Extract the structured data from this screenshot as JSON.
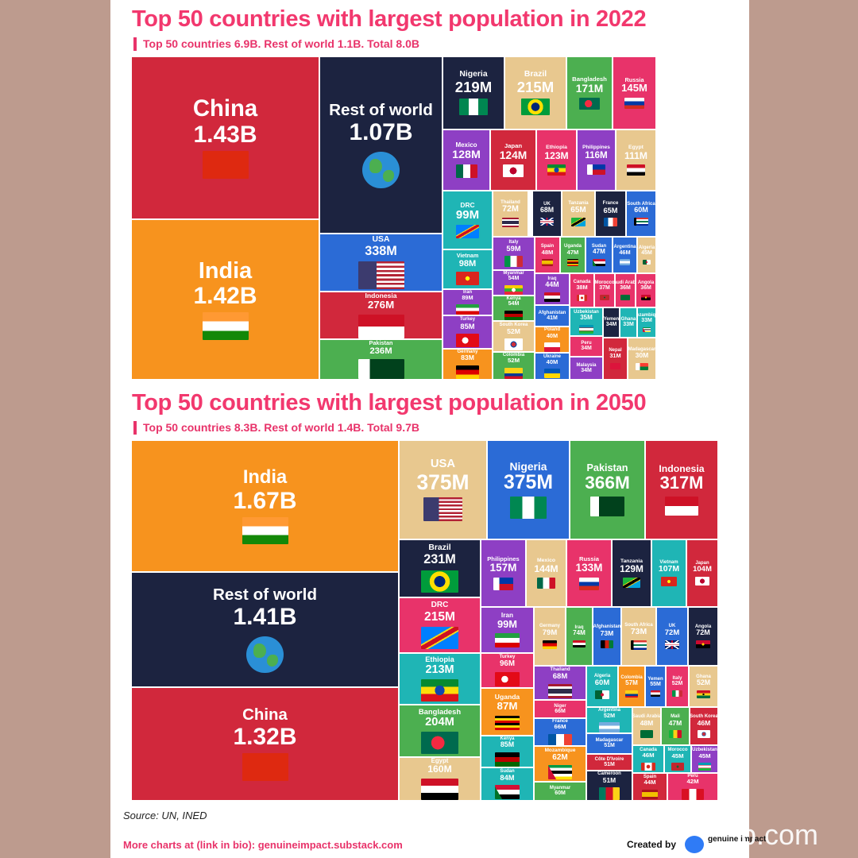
{
  "chart_data": [
    {
      "type": "treemap",
      "title": "Top 50 countries with largest population in 2022",
      "subtitle": "Top 50 countries 6.9B. Rest of world 1.1B. Total 8.0B",
      "unit": "people",
      "items": [
        {
          "name": "China",
          "label": "1.43B",
          "value": 1430000000,
          "color": "#d1283c",
          "flag": "china"
        },
        {
          "name": "India",
          "label": "1.42B",
          "value": 1420000000,
          "color": "#f7931e",
          "flag": "india"
        },
        {
          "name": "Rest of world",
          "label": "1.07B",
          "value": 1070000000,
          "color": "#1c2340",
          "flag": "globe"
        },
        {
          "name": "USA",
          "label": "338M",
          "value": 338000000,
          "color": "#2b6bd6",
          "flag": "usa"
        },
        {
          "name": "Indonesia",
          "label": "276M",
          "value": 276000000,
          "color": "#d1283c",
          "flag": "indonesia"
        },
        {
          "name": "Pakistan",
          "label": "236M",
          "value": 236000000,
          "color": "#4caf50",
          "flag": "pakistan"
        },
        {
          "name": "Nigeria",
          "label": "219M",
          "value": 219000000,
          "color": "#1c2340",
          "flag": "nigeria"
        },
        {
          "name": "Brazil",
          "label": "215M",
          "value": 215000000,
          "color": "#e8c88f",
          "flag": "brazil"
        },
        {
          "name": "Bangladesh",
          "label": "171M",
          "value": 171000000,
          "color": "#4caf50",
          "flag": "bangladesh"
        },
        {
          "name": "Russia",
          "label": "145M",
          "value": 145000000,
          "color": "#e8336a",
          "flag": "russia"
        },
        {
          "name": "Mexico",
          "label": "128M",
          "value": 128000000,
          "color": "#8e3fc4",
          "flag": "mexico"
        },
        {
          "name": "Japan",
          "label": "124M",
          "value": 124000000,
          "color": "#d1283c",
          "flag": "japan"
        },
        {
          "name": "Ethiopia",
          "label": "123M",
          "value": 123000000,
          "color": "#e8336a",
          "flag": "ethiopia"
        },
        {
          "name": "Philippines",
          "label": "116M",
          "value": 116000000,
          "color": "#8e3fc4",
          "flag": "philippines"
        },
        {
          "name": "Egypt",
          "label": "111M",
          "value": 111000000,
          "color": "#e8c88f",
          "flag": "egypt"
        },
        {
          "name": "DRC",
          "label": "99M",
          "value": 99000000,
          "color": "#1fb5b5",
          "flag": "drc"
        },
        {
          "name": "Vietnam",
          "label": "98M",
          "value": 98000000,
          "color": "#1fb5b5",
          "flag": "vietnam"
        },
        {
          "name": "Iran",
          "label": "89M",
          "value": 89000000,
          "color": "#8e3fc4",
          "flag": "iran"
        },
        {
          "name": "Turkey",
          "label": "85M",
          "value": 85000000,
          "color": "#8e3fc4",
          "flag": "turkey"
        },
        {
          "name": "Germany",
          "label": "83M",
          "value": 83000000,
          "color": "#f7931e",
          "flag": "germany"
        },
        {
          "name": "Thailand",
          "label": "72M",
          "value": 72000000,
          "color": "#e8c88f",
          "flag": "thailand"
        },
        {
          "name": "UK",
          "label": "68M",
          "value": 68000000,
          "color": "#1c2340",
          "flag": "uk"
        },
        {
          "name": "Tanzania",
          "label": "65M",
          "value": 65000000,
          "color": "#e8c88f",
          "flag": "tanzania"
        },
        {
          "name": "France",
          "label": "65M",
          "value": 65000000,
          "color": "#1c2340",
          "flag": "france"
        },
        {
          "name": "South Africa",
          "label": "60M",
          "value": 60000000,
          "color": "#2b6bd6",
          "flag": "south-africa"
        },
        {
          "name": "Italy",
          "label": "59M",
          "value": 59000000,
          "color": "#8e3fc4",
          "flag": "italy"
        },
        {
          "name": "Myanmar",
          "label": "54M",
          "value": 54000000,
          "color": "#8e3fc4",
          "flag": "myanmar"
        },
        {
          "name": "Kenya",
          "label": "54M",
          "value": 54000000,
          "color": "#4caf50",
          "flag": "kenya"
        },
        {
          "name": "South Korea",
          "label": "52M",
          "value": 52000000,
          "color": "#e8c88f",
          "flag": "south-korea"
        },
        {
          "name": "Colombia",
          "label": "52M",
          "value": 52000000,
          "color": "#4caf50",
          "flag": "colombia"
        },
        {
          "name": "Spain",
          "label": "48M",
          "value": 48000000,
          "color": "#e8336a",
          "flag": "spain"
        },
        {
          "name": "Uganda",
          "label": "47M",
          "value": 47000000,
          "color": "#4caf50",
          "flag": "uganda"
        },
        {
          "name": "Sudan",
          "label": "47M",
          "value": 47000000,
          "color": "#2b6bd6",
          "flag": "sudan"
        },
        {
          "name": "Argentina",
          "label": "46M",
          "value": 46000000,
          "color": "#2b6bd6",
          "flag": "argentina"
        },
        {
          "name": "Algeria",
          "label": "45M",
          "value": 45000000,
          "color": "#e8c88f",
          "flag": "algeria"
        },
        {
          "name": "Iraq",
          "label": "44M",
          "value": 44000000,
          "color": "#8e3fc4",
          "flag": "iraq"
        },
        {
          "name": "Afghanistan",
          "label": "41M",
          "value": 41000000,
          "color": "#2b6bd6",
          "flag": "afghanistan"
        },
        {
          "name": "Poland",
          "label": "40M",
          "value": 40000000,
          "color": "#f7931e",
          "flag": "poland"
        },
        {
          "name": "Ukraine",
          "label": "40M",
          "value": 40000000,
          "color": "#2b6bd6",
          "flag": "ukraine"
        },
        {
          "name": "Canada",
          "label": "38M",
          "value": 38000000,
          "color": "#e8336a",
          "flag": "canada"
        },
        {
          "name": "Morocco",
          "label": "37M",
          "value": 37000000,
          "color": "#e8336a",
          "flag": "morocco"
        },
        {
          "name": "Saudi Arabia",
          "label": "36M",
          "value": 36000000,
          "color": "#e8336a",
          "flag": "saudi-arabia"
        },
        {
          "name": "Angola",
          "label": "36M",
          "value": 36000000,
          "color": "#e8336a",
          "flag": "angola"
        },
        {
          "name": "Uzbekistan",
          "label": "35M",
          "value": 35000000,
          "color": "#1fb5b5",
          "flag": "uzbekistan"
        },
        {
          "name": "Peru",
          "label": "34M",
          "value": 34000000,
          "color": "#e8336a",
          "flag": "peru"
        },
        {
          "name": "Malaysia",
          "label": "34M",
          "value": 34000000,
          "color": "#8e3fc4",
          "flag": "malaysia"
        },
        {
          "name": "Yemen",
          "label": "34M",
          "value": 34000000,
          "color": "#1c2340",
          "flag": "yemen"
        },
        {
          "name": "Ghana",
          "label": "33M",
          "value": 33000000,
          "color": "#1fb5b5",
          "flag": "ghana"
        },
        {
          "name": "Mozambique",
          "label": "33M",
          "value": 33000000,
          "color": "#1fb5b5",
          "flag": "mozambique"
        },
        {
          "name": "Nepal",
          "label": "31M",
          "value": 31000000,
          "color": "#d1283c",
          "flag": "nepal"
        },
        {
          "name": "Madagascar",
          "label": "30M",
          "value": 30000000,
          "color": "#e8c88f",
          "flag": "madagascar"
        }
      ]
    },
    {
      "type": "treemap",
      "title": "Top 50 countries with largest population in 2050",
      "subtitle": "Top 50 countries 8.3B. Rest of world 1.4B. Total 9.7B",
      "unit": "people",
      "items": [
        {
          "name": "India",
          "label": "1.67B",
          "value": 1670000000,
          "color": "#f7931e",
          "flag": "india"
        },
        {
          "name": "Rest of world",
          "label": "1.41B",
          "value": 1410000000,
          "color": "#1c2340",
          "flag": "globe"
        },
        {
          "name": "China",
          "label": "1.32B",
          "value": 1320000000,
          "color": "#d1283c",
          "flag": "china"
        },
        {
          "name": "USA",
          "label": "375M",
          "value": 375000000,
          "color": "#e8c88f",
          "flag": "usa"
        },
        {
          "name": "Nigeria",
          "label": "375M",
          "value": 375000000,
          "color": "#2b6bd6",
          "flag": "nigeria"
        },
        {
          "name": "Pakistan",
          "label": "366M",
          "value": 366000000,
          "color": "#4caf50",
          "flag": "pakistan"
        },
        {
          "name": "Indonesia",
          "label": "317M",
          "value": 317000000,
          "color": "#d1283c",
          "flag": "indonesia"
        },
        {
          "name": "Brazil",
          "label": "231M",
          "value": 231000000,
          "color": "#1c2340",
          "flag": "brazil"
        },
        {
          "name": "DRC",
          "label": "215M",
          "value": 215000000,
          "color": "#e8336a",
          "flag": "drc"
        },
        {
          "name": "Ethiopia",
          "label": "213M",
          "value": 213000000,
          "color": "#1fb5b5",
          "flag": "ethiopia"
        },
        {
          "name": "Bangladesh",
          "label": "204M",
          "value": 204000000,
          "color": "#4caf50",
          "flag": "bangladesh"
        },
        {
          "name": "Egypt",
          "label": "160M",
          "value": 160000000,
          "color": "#e8c88f",
          "flag": "egypt"
        },
        {
          "name": "Philippines",
          "label": "157M",
          "value": 157000000,
          "color": "#8e3fc4",
          "flag": "philippines"
        },
        {
          "name": "Mexico",
          "label": "144M",
          "value": 144000000,
          "color": "#e8c88f",
          "flag": "mexico"
        },
        {
          "name": "Russia",
          "label": "133M",
          "value": 133000000,
          "color": "#e8336a",
          "flag": "russia"
        },
        {
          "name": "Tanzania",
          "label": "129M",
          "value": 129000000,
          "color": "#1c2340",
          "flag": "tanzania"
        },
        {
          "name": "Vietnam",
          "label": "107M",
          "value": 107000000,
          "color": "#1fb5b5",
          "flag": "vietnam"
        },
        {
          "name": "Japan",
          "label": "104M",
          "value": 104000000,
          "color": "#d1283c",
          "flag": "japan"
        },
        {
          "name": "Iran",
          "label": "99M",
          "value": 99000000,
          "color": "#8e3fc4",
          "flag": "iran"
        },
        {
          "name": "Turkey",
          "label": "96M",
          "value": 96000000,
          "color": "#e8336a",
          "flag": "turkey"
        },
        {
          "name": "Uganda",
          "label": "87M",
          "value": 87000000,
          "color": "#f7931e",
          "flag": "uganda"
        },
        {
          "name": "Kenya",
          "label": "85M",
          "value": 85000000,
          "color": "#1fb5b5",
          "flag": "kenya"
        },
        {
          "name": "Sudan",
          "label": "84M",
          "value": 84000000,
          "color": "#1fb5b5",
          "flag": "sudan"
        },
        {
          "name": "Germany",
          "label": "79M",
          "value": 79000000,
          "color": "#e8c88f",
          "flag": "germany"
        },
        {
          "name": "Iraq",
          "label": "74M",
          "value": 74000000,
          "color": "#4caf50",
          "flag": "iraq"
        },
        {
          "name": "Afghanistan",
          "label": "73M",
          "value": 73000000,
          "color": "#2b6bd6",
          "flag": "afghanistan"
        },
        {
          "name": "South Africa",
          "label": "73M",
          "value": 73000000,
          "color": "#e8c88f",
          "flag": "south-africa"
        },
        {
          "name": "UK",
          "label": "72M",
          "value": 72000000,
          "color": "#2b6bd6",
          "flag": "uk"
        },
        {
          "name": "Angola",
          "label": "72M",
          "value": 72000000,
          "color": "#1c2340",
          "flag": "angola"
        },
        {
          "name": "Thailand",
          "label": "68M",
          "value": 68000000,
          "color": "#8e3fc4",
          "flag": "thailand"
        },
        {
          "name": "Niger",
          "label": "66M",
          "value": 66000000,
          "color": "#e8336a",
          "flag": "niger"
        },
        {
          "name": "France",
          "label": "66M",
          "value": 66000000,
          "color": "#2b6bd6",
          "flag": "france"
        },
        {
          "name": "Mozambique",
          "label": "62M",
          "value": 62000000,
          "color": "#f7931e",
          "flag": "mozambique"
        },
        {
          "name": "Myanmar",
          "label": "60M",
          "value": 60000000,
          "color": "#4caf50",
          "flag": "myanmar"
        },
        {
          "name": "Algeria",
          "label": "60M",
          "value": 60000000,
          "color": "#1fb5b5",
          "flag": "algeria"
        },
        {
          "name": "Colombia",
          "label": "57M",
          "value": 57000000,
          "color": "#f7931e",
          "flag": "colombia"
        },
        {
          "name": "Yemen",
          "label": "55M",
          "value": 55000000,
          "color": "#2b6bd6",
          "flag": "yemen"
        },
        {
          "name": "Italy",
          "label": "52M",
          "value": 52000000,
          "color": "#e8336a",
          "flag": "italy"
        },
        {
          "name": "Ghana",
          "label": "52M",
          "value": 52000000,
          "color": "#e8c88f",
          "flag": "ghana"
        },
        {
          "name": "Argentina",
          "label": "52M",
          "value": 52000000,
          "color": "#1fb5b5",
          "flag": "argentina"
        },
        {
          "name": "Madagascar",
          "label": "51M",
          "value": 51000000,
          "color": "#2b6bd6",
          "flag": "madagascar"
        },
        {
          "name": "Côte D'Ivoire",
          "label": "51M",
          "value": 51000000,
          "color": "#d1283c",
          "flag": "cote-divoire"
        },
        {
          "name": "Cameroon",
          "label": "51M",
          "value": 51000000,
          "color": "#1c2340",
          "flag": "cameroon"
        },
        {
          "name": "Saudi Arabia",
          "label": "48M",
          "value": 48000000,
          "color": "#e8c88f",
          "flag": "saudi-arabia"
        },
        {
          "name": "Mali",
          "label": "47M",
          "value": 47000000,
          "color": "#4caf50",
          "flag": "mali"
        },
        {
          "name": "South Korea",
          "label": "46M",
          "value": 46000000,
          "color": "#d1283c",
          "flag": "south-korea"
        },
        {
          "name": "Canada",
          "label": "46M",
          "value": 46000000,
          "color": "#1fb5b5",
          "flag": "canada"
        },
        {
          "name": "Morocco",
          "label": "45M",
          "value": 45000000,
          "color": "#1fb5b5",
          "flag": "morocco"
        },
        {
          "name": "Uzbekistan",
          "label": "45M",
          "value": 45000000,
          "color": "#8e3fc4",
          "flag": "uzbekistan"
        },
        {
          "name": "Spain",
          "label": "44M",
          "value": 44000000,
          "color": "#d1283c",
          "flag": "spain"
        },
        {
          "name": "Peru",
          "label": "42M",
          "value": 42000000,
          "color": "#e8336a",
          "flag": "peru"
        }
      ]
    }
  ],
  "footer": {
    "source": "Source: UN, INED",
    "more_charts": "More charts at (link in bio): genuineimpact.substack.com",
    "created_by": "Created by",
    "brand": "genuine impact",
    "watermark": "p.com"
  }
}
